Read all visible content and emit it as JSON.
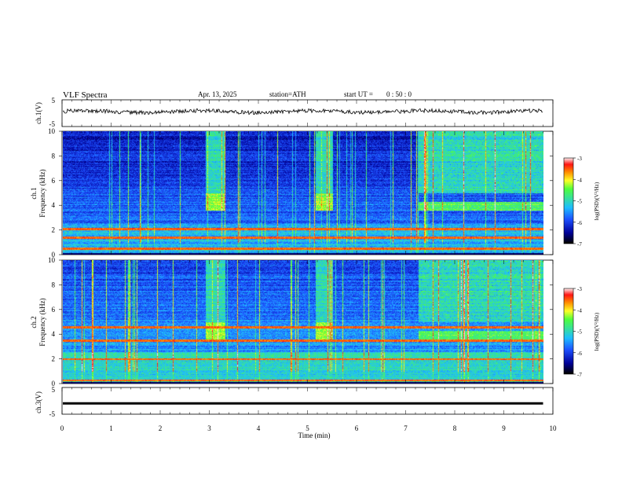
{
  "header": {
    "title": "VLF  Spectra",
    "date": "Apr. 13, 2025",
    "station": "station=ATH",
    "start_label": "start  UT  =",
    "start_value": "0 : 50 : 0"
  },
  "colorbar": {
    "label": "log(PSD)(V²/Hz)",
    "ticks": [
      "-3",
      "-4",
      "-5",
      "-6",
      "-7"
    ],
    "colors": [
      "#ffe6e6",
      "#ff2020",
      "#ffa000",
      "#ffff30",
      "#40ff40",
      "#20c8ff",
      "#2060ff",
      "#0000b0",
      "#000000"
    ]
  },
  "chart_data": [
    {
      "type": "line",
      "name": "ch1-waveform",
      "ylabel": "ch.1(V)",
      "ylim": [
        -5,
        5
      ],
      "yticks": [
        "5",
        "-5"
      ],
      "xlim": [
        0,
        10
      ],
      "description_level": 0.1
    },
    {
      "type": "heatmap",
      "name": "ch1-spectrogram",
      "ylabel": "ch.1\nFrequency (kHz)",
      "ylabel_line1": "ch.1",
      "ylabel_line2": "Frequency  (kHz)",
      "ylim": [
        0,
        10
      ],
      "yticks": [
        "0",
        "2",
        "4",
        "6",
        "8",
        "10"
      ],
      "xlim": [
        0,
        10
      ],
      "data_end_min": 9.8,
      "zlim": [
        -7,
        -3
      ],
      "enhanced_intervals_min": [
        [
          2.9,
          3.3
        ],
        [
          5.15,
          5.5
        ],
        [
          7.25,
          9.8
        ]
      ],
      "strong_lines_khz": [
        2.1,
        0.5,
        1.4
      ]
    },
    {
      "type": "heatmap",
      "name": "ch2-spectrogram",
      "ylabel_line1": "ch.2",
      "ylabel_line2": "Frequency  (kHz)",
      "ylim": [
        0,
        10
      ],
      "yticks": [
        "0",
        "2",
        "4",
        "6",
        "8",
        "10"
      ],
      "xlim": [
        0,
        10
      ],
      "data_end_min": 9.8,
      "zlim": [
        -7,
        -3
      ],
      "enhanced_intervals_min": [
        [
          2.9,
          3.3
        ],
        [
          5.15,
          5.5
        ],
        [
          7.25,
          9.8
        ]
      ],
      "strong_lines_khz": [
        4.6,
        3.5,
        2.0,
        0.3
      ]
    },
    {
      "type": "line",
      "name": "ch3-waveform",
      "ylabel": "ch.3(V)",
      "ylim": [
        -5,
        5
      ],
      "yticks": [
        "5",
        "-5"
      ],
      "xlim": [
        0,
        10
      ],
      "level": -1.0
    }
  ],
  "xaxis": {
    "label": "Time  (min)",
    "ticks": [
      "0",
      "1",
      "2",
      "3",
      "4",
      "5",
      "6",
      "7",
      "8",
      "9",
      "10"
    ]
  }
}
